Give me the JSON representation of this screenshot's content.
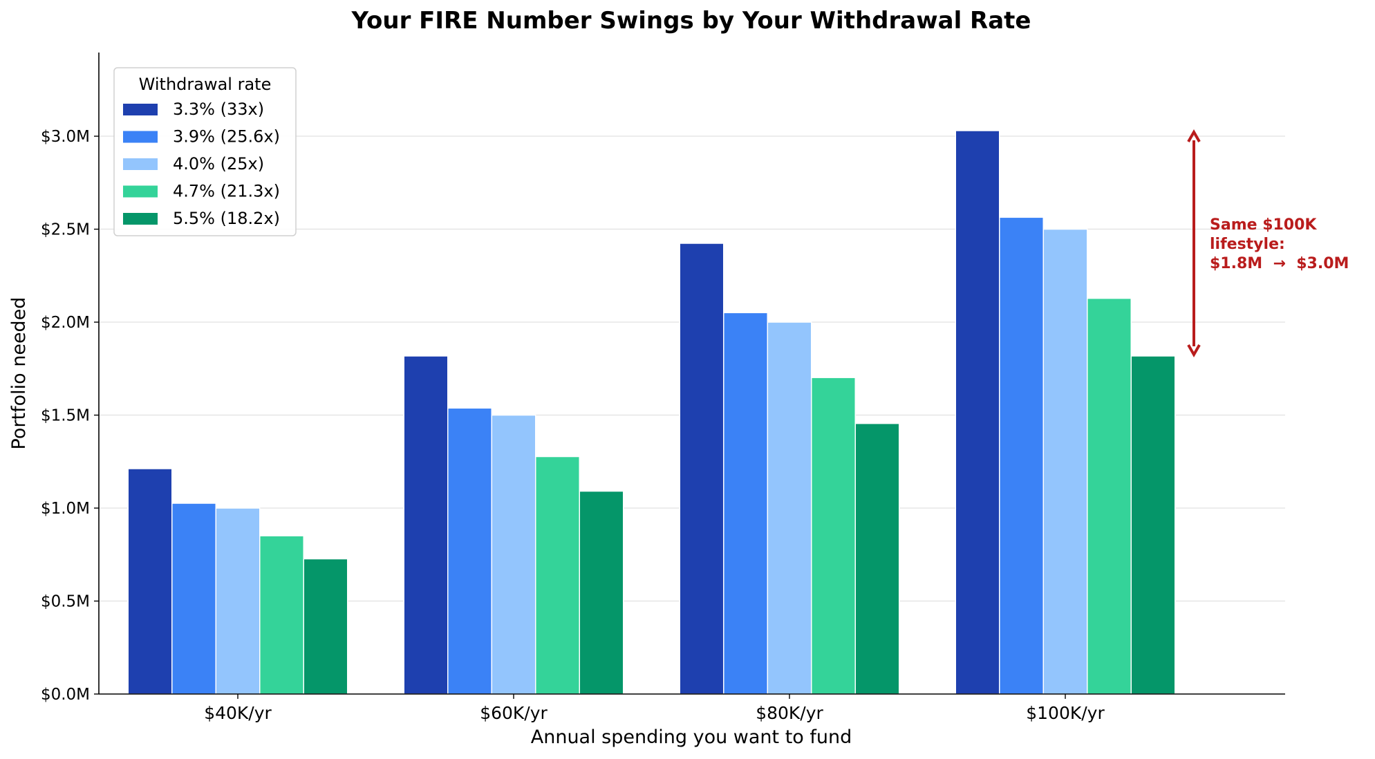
{
  "chart_data": {
    "type": "bar",
    "title": "Your FIRE Number Swings by Your Withdrawal Rate",
    "xlabel": "Annual spending you want to fund",
    "ylabel": "Portfolio needed",
    "categories": [
      "$40K/yr",
      "$60K/yr",
      "$80K/yr",
      "$100K/yr"
    ],
    "ylim": [
      0,
      3.45
    ],
    "y_unit": "millions of dollars",
    "yticks": [
      0.0,
      0.5,
      1.0,
      1.5,
      2.0,
      2.5,
      3.0
    ],
    "ytick_labels": [
      "$0.0M",
      "$0.5M",
      "$1.0M",
      "$1.5M",
      "$2.0M",
      "$2.5M",
      "$3.0M"
    ],
    "grid": "horizontal",
    "legend": {
      "title": "Withdrawal rate",
      "placement": "top-left"
    },
    "series": [
      {
        "name": "3.3% (33x)",
        "color": "#1e40af",
        "values": [
          1.212,
          1.818,
          2.424,
          3.03
        ]
      },
      {
        "name": "3.9% (25.6x)",
        "color": "#3b82f6",
        "values": [
          1.026,
          1.538,
          2.051,
          2.564
        ]
      },
      {
        "name": "4.0% (25x)",
        "color": "#93c5fd",
        "values": [
          1.0,
          1.5,
          2.0,
          2.5
        ]
      },
      {
        "name": "4.7% (21.3x)",
        "color": "#34d399",
        "values": [
          0.851,
          1.277,
          1.702,
          2.128
        ]
      },
      {
        "name": "5.5% (18.2x)",
        "color": "#059669",
        "values": [
          0.727,
          1.091,
          1.455,
          1.818
        ]
      }
    ],
    "annotation": {
      "lines": [
        "Same $100K",
        "lifestyle:",
        "$1.8M  →  $3.0M"
      ],
      "color": "#b91c1c",
      "arrow_from": 1.818,
      "arrow_to": 3.03,
      "category": "$100K/yr"
    }
  }
}
